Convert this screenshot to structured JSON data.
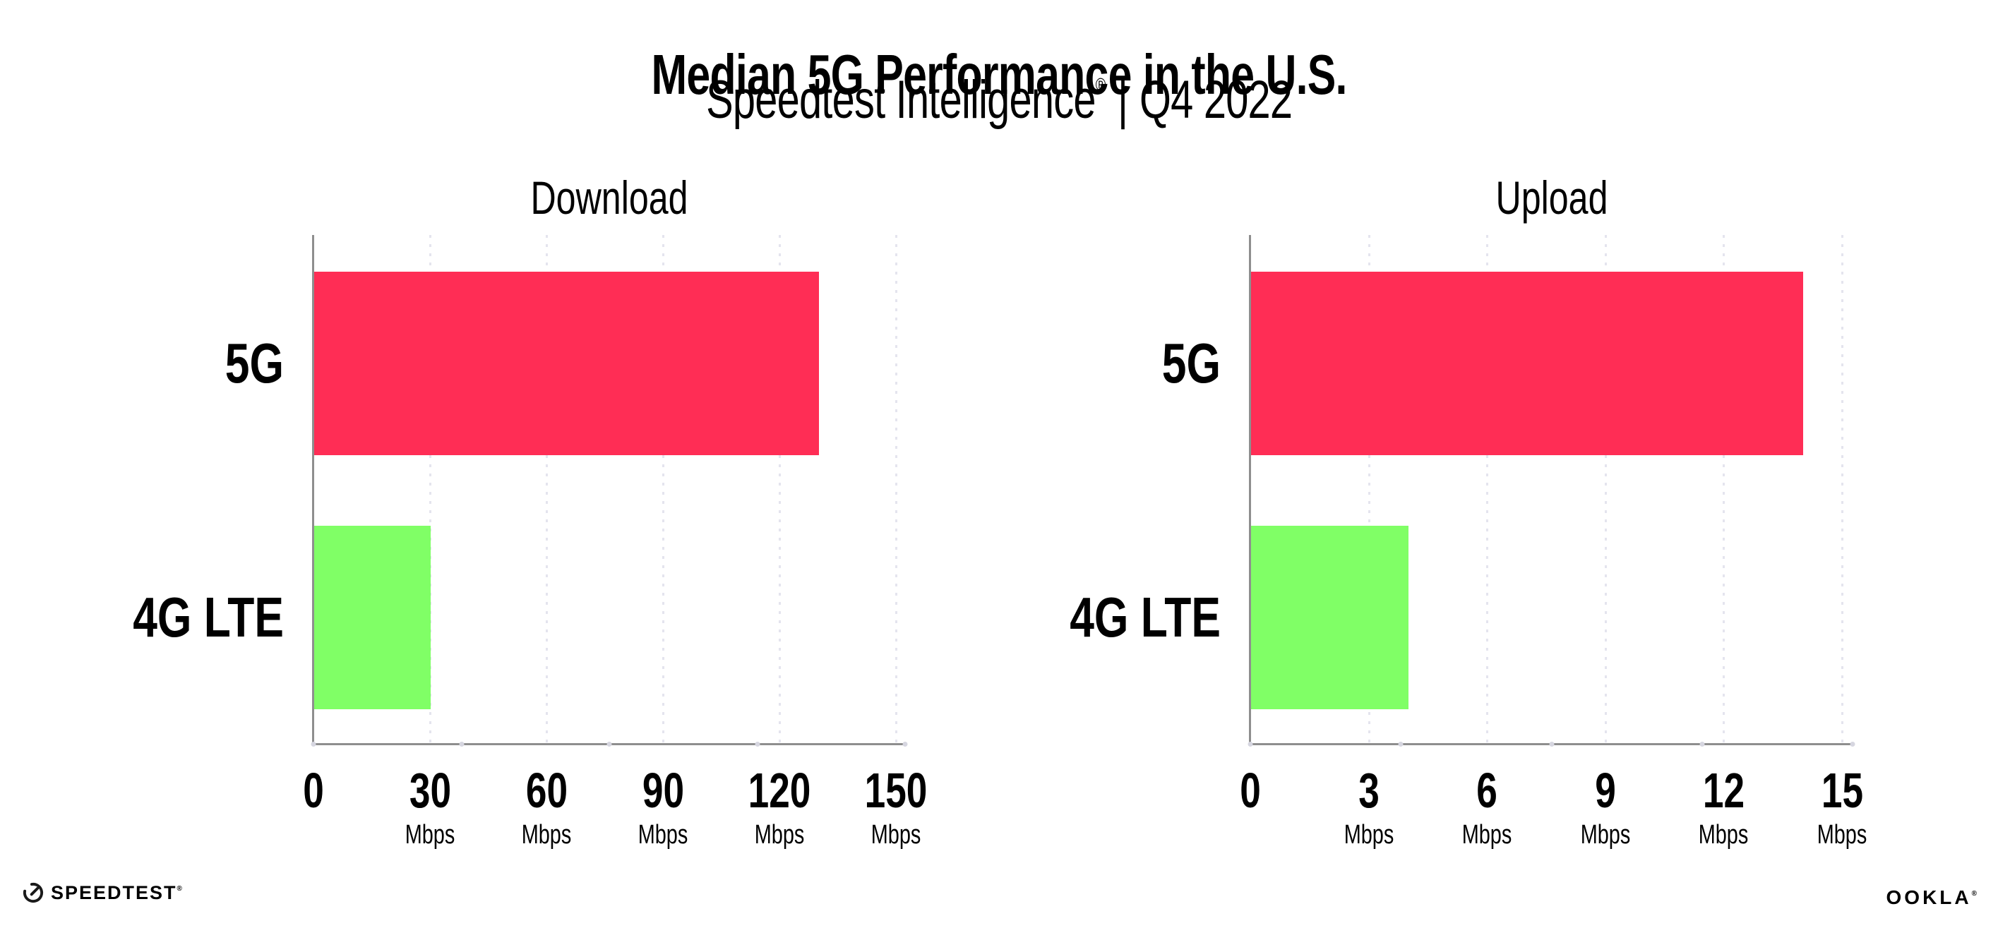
{
  "header": {
    "title": "Median 5G Performance in the U.S.",
    "subtitle_brand": "Speedtest Intelligence",
    "subtitle_reg": "®",
    "subtitle_separator": "|",
    "subtitle_period": "Q4 2022"
  },
  "chart_data": [
    {
      "type": "bar",
      "orientation": "horizontal",
      "title": "Download",
      "categories": [
        "5G",
        "4G LTE"
      ],
      "values": [
        130,
        30
      ],
      "unit": "Mbps",
      "xlabel": "",
      "ylabel": "",
      "xlim": [
        0,
        152
      ],
      "xticks": [
        0,
        30,
        60,
        90,
        120,
        150
      ],
      "tick_unit": "Mbps",
      "bar_colors": [
        "#FF2D55",
        "#80FF66"
      ],
      "grid": "dotted-vertical",
      "legend": "none"
    },
    {
      "type": "bar",
      "orientation": "horizontal",
      "title": "Upload",
      "categories": [
        "5G",
        "4G LTE"
      ],
      "values": [
        14,
        4
      ],
      "unit": "Mbps",
      "xlabel": "",
      "ylabel": "",
      "xlim": [
        0,
        15.3
      ],
      "xticks": [
        0,
        3,
        6,
        9,
        12,
        15
      ],
      "tick_unit": "Mbps",
      "bar_colors": [
        "#FF2D55",
        "#80FF66"
      ],
      "grid": "dotted-vertical",
      "legend": "none"
    }
  ],
  "footer": {
    "speedtest_label": "SPEEDTEST",
    "speedtest_reg": "®",
    "ookla_label": "OOKLA",
    "ookla_reg": "®"
  },
  "colors": {
    "bar_5g": "#FF2D55",
    "bar_4g_lte": "#80FF66",
    "axis": "#8E8E8E",
    "gridline": "#E4E4EE",
    "text": "#000000",
    "background": "#FFFFFF"
  }
}
